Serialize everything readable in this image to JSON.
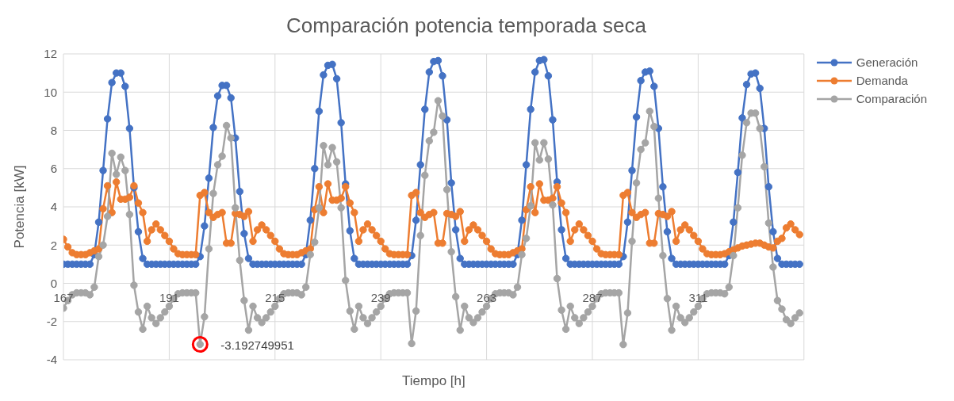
{
  "chart_data": {
    "type": "line",
    "title": "Comparación potencia temporada seca",
    "xlabel": "Tiempo [h]",
    "ylabel": "Potencia [kW]",
    "x": [
      167,
      168,
      169,
      170,
      171,
      172,
      173,
      174,
      175,
      176,
      177,
      178,
      179,
      180,
      181,
      182,
      183,
      184,
      185,
      186,
      187,
      188,
      189,
      190,
      191,
      192,
      193,
      194,
      195,
      196,
      197,
      198,
      199,
      200,
      201,
      202,
      203,
      204,
      205,
      206,
      207,
      208,
      209,
      210,
      211,
      212,
      213,
      214,
      215,
      216,
      217,
      218,
      219,
      220,
      221,
      222,
      223,
      224,
      225,
      226,
      227,
      228,
      229,
      230,
      231,
      232,
      233,
      234,
      235,
      236,
      237,
      238,
      239,
      240,
      241,
      242,
      243,
      244,
      245,
      246,
      247,
      248,
      249,
      250,
      251,
      252,
      253,
      254,
      255,
      256,
      257,
      258,
      259,
      260,
      261,
      262,
      263,
      264,
      265,
      266,
      267,
      268,
      269,
      270,
      271,
      272,
      273,
      274,
      275,
      276,
      277,
      278,
      279,
      280,
      281,
      282,
      283,
      284,
      285,
      286,
      287,
      288,
      289,
      290,
      291,
      292,
      293,
      294,
      295,
      296,
      297,
      298,
      299,
      300,
      301,
      302,
      303,
      304,
      305,
      306,
      307,
      308,
      309,
      310,
      311,
      312,
      313,
      314,
      315,
      316,
      317,
      318,
      319,
      320,
      321,
      322,
      323,
      324,
      325,
      326,
      327,
      328,
      329,
      330,
      331,
      332,
      333,
      334
    ],
    "xlim": [
      167,
      335
    ],
    "xticks": [
      167,
      191,
      215,
      239,
      263,
      287,
      311
    ],
    "ylim": [
      -4,
      12
    ],
    "yticks": [
      -4,
      -2,
      0,
      2,
      4,
      6,
      8,
      10,
      12
    ],
    "grid": true,
    "legend": "top right",
    "marker": "circle",
    "line_style": "solid",
    "series": [
      {
        "name": "Generación",
        "color": "#4472c4",
        "values": [
          1,
          1,
          1,
          1,
          1,
          1,
          1,
          1.5,
          3.2,
          5.9,
          8.6,
          10.5,
          11,
          11,
          10.3,
          8.1,
          5.0,
          2.7,
          1.3,
          1,
          1,
          1,
          1,
          1,
          1,
          1,
          1,
          1,
          1,
          1,
          1,
          1.4,
          3.0,
          5.5,
          8.15,
          9.8,
          10.35,
          10.35,
          9.7,
          7.6,
          4.8,
          2.6,
          1.3,
          1,
          1,
          1,
          1,
          1,
          1,
          1,
          1,
          1,
          1,
          1,
          1,
          1.5,
          3.3,
          6.0,
          9.0,
          10.9,
          11.4,
          11.45,
          10.7,
          8.4,
          5.2,
          2.75,
          1.3,
          1,
          1,
          1,
          1,
          1,
          1,
          1,
          1,
          1,
          1,
          1,
          1,
          1.45,
          3.3,
          6.2,
          9.1,
          11.05,
          11.6,
          11.65,
          10.85,
          8.55,
          5.25,
          2.8,
          1.3,
          1,
          1,
          1,
          1,
          1,
          1,
          1,
          1,
          1,
          1,
          1,
          1,
          1.5,
          3.3,
          6.2,
          9.1,
          11.05,
          11.65,
          11.7,
          10.85,
          8.55,
          5.3,
          2.8,
          1.3,
          1,
          1,
          1,
          1,
          1,
          1,
          1,
          1,
          1,
          1,
          1,
          1,
          1.4,
          3.2,
          5.9,
          8.7,
          10.6,
          11.05,
          11.1,
          10.3,
          8.1,
          5.05,
          2.7,
          1.3,
          1,
          1,
          1,
          1,
          1,
          1,
          1,
          1,
          1,
          1,
          1,
          1,
          1.45,
          3.2,
          5.8,
          8.65,
          10.4,
          10.95,
          11.0,
          10.2,
          8.1,
          5.05,
          2.7,
          1.3,
          1,
          1,
          1,
          1,
          1
        ]
      },
      {
        "name": "Demanda",
        "color": "#ed7d31",
        "values": [
          2.3,
          1.9,
          1.6,
          1.5,
          1.5,
          1.5,
          1.6,
          1.7,
          1.8,
          3.9,
          5.1,
          3.7,
          5.3,
          4.4,
          4.4,
          4.5,
          5.1,
          4.2,
          3.7,
          2.2,
          2.8,
          3.1,
          2.8,
          2.5,
          2.2,
          1.8,
          1.55,
          1.5,
          1.5,
          1.5,
          1.5,
          4.6,
          4.75,
          3.7,
          3.45,
          3.6,
          3.7,
          2.1,
          2.1,
          3.65,
          3.6,
          3.5,
          3.75,
          2.2,
          2.8,
          3.05,
          2.8,
          2.5,
          2.2,
          1.8,
          1.55,
          1.5,
          1.5,
          1.5,
          1.6,
          1.7,
          1.8,
          3.85,
          5.05,
          3.7,
          5.2,
          4.35,
          4.35,
          4.45,
          5.05,
          4.2,
          3.7,
          2.2,
          2.8,
          3.1,
          2.8,
          2.5,
          2.2,
          1.8,
          1.55,
          1.5,
          1.5,
          1.5,
          1.5,
          4.6,
          4.75,
          3.7,
          3.45,
          3.6,
          3.7,
          2.1,
          2.1,
          3.65,
          3.6,
          3.5,
          3.75,
          2.2,
          2.8,
          3.05,
          2.8,
          2.5,
          2.2,
          1.8,
          1.55,
          1.5,
          1.5,
          1.5,
          1.6,
          1.7,
          1.8,
          3.85,
          5.05,
          3.7,
          5.2,
          4.35,
          4.35,
          4.45,
          5.05,
          4.2,
          3.7,
          2.2,
          2.8,
          3.1,
          2.8,
          2.5,
          2.2,
          1.8,
          1.55,
          1.5,
          1.5,
          1.5,
          1.5,
          4.6,
          4.75,
          3.7,
          3.45,
          3.6,
          3.7,
          2.1,
          2.1,
          3.65,
          3.6,
          3.5,
          3.75,
          2.2,
          2.8,
          3.05,
          2.8,
          2.5,
          2.2,
          1.8,
          1.55,
          1.5,
          1.5,
          1.5,
          1.55,
          1.65,
          1.75,
          1.85,
          1.95,
          2.0,
          2.05,
          2.1,
          2.1,
          2.0,
          1.9,
          1.85,
          2.2,
          2.35,
          2.9,
          3.1,
          2.8,
          2.55
        ]
      },
      {
        "name": "Comparación",
        "color": "#a5a5a5",
        "values": [
          -1.3,
          -0.9,
          -0.6,
          -0.5,
          -0.5,
          -0.5,
          -0.6,
          -0.2,
          1.4,
          2.0,
          3.5,
          6.8,
          5.7,
          6.6,
          5.9,
          3.6,
          -0.1,
          -1.5,
          -2.4,
          -1.2,
          -1.8,
          -2.1,
          -1.8,
          -1.5,
          -1.2,
          -0.8,
          -0.55,
          -0.5,
          -0.5,
          -0.5,
          -0.5,
          -3.192749951,
          -1.75,
          1.8,
          4.7,
          6.2,
          6.65,
          8.25,
          7.6,
          3.95,
          1.2,
          -0.9,
          -2.45,
          -1.2,
          -1.8,
          -2.05,
          -1.8,
          -1.5,
          -1.2,
          -0.8,
          -0.55,
          -0.5,
          -0.5,
          -0.5,
          -0.6,
          -0.2,
          1.5,
          2.15,
          3.95,
          7.2,
          6.2,
          7.1,
          6.35,
          3.95,
          0.15,
          -1.45,
          -2.4,
          -1.2,
          -1.8,
          -2.1,
          -1.8,
          -1.5,
          -1.2,
          -0.8,
          -0.55,
          -0.5,
          -0.5,
          -0.5,
          -0.5,
          -3.15,
          -1.45,
          2.5,
          5.65,
          7.45,
          7.9,
          9.55,
          8.75,
          4.9,
          1.65,
          -0.7,
          -2.45,
          -1.2,
          -1.8,
          -2.05,
          -1.8,
          -1.5,
          -1.2,
          -0.8,
          -0.55,
          -0.5,
          -0.5,
          -0.5,
          -0.6,
          -0.2,
          1.5,
          2.35,
          4.05,
          7.35,
          6.45,
          7.35,
          6.5,
          4.1,
          0.25,
          -1.4,
          -2.4,
          -1.2,
          -1.8,
          -2.1,
          -1.8,
          -1.5,
          -1.2,
          -0.8,
          -0.55,
          -0.5,
          -0.5,
          -0.5,
          -0.5,
          -3.2,
          -1.55,
          2.2,
          5.25,
          7.0,
          7.35,
          9.0,
          8.2,
          4.45,
          1.45,
          -0.8,
          -2.45,
          -1.2,
          -1.8,
          -2.05,
          -1.8,
          -1.5,
          -1.2,
          -0.8,
          -0.55,
          -0.5,
          -0.5,
          -0.5,
          -0.55,
          -0.2,
          1.45,
          3.95,
          6.7,
          8.4,
          8.9,
          8.9,
          8.1,
          6.1,
          3.15,
          0.85,
          -0.9,
          -1.35,
          -1.9,
          -2.1,
          -1.8,
          -1.55
        ]
      }
    ],
    "annotations": [
      {
        "text": "-3.192749951",
        "x": 198,
        "y": -3.192749951
      }
    ]
  }
}
